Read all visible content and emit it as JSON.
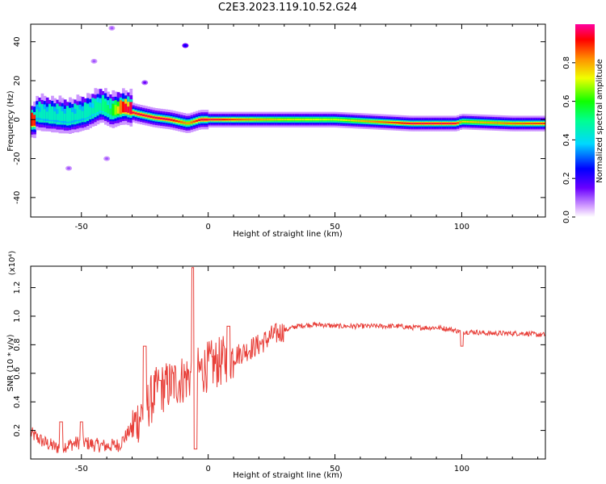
{
  "chart_data": [
    {
      "type": "heatmap",
      "title": "C2E3.2023.119.10.52.G24",
      "xlabel": "Height of straight line (km)",
      "ylabel": "Frequency (Hz)",
      "xlim": [
        -70,
        133
      ],
      "ylim": [
        -50,
        49
      ],
      "xticks": [
        -50,
        0,
        50,
        100
      ],
      "yticks": [
        -40,
        -20,
        0,
        20,
        40
      ],
      "colorbar": {
        "label": "Normalized spectral amplitude",
        "range": [
          0,
          1
        ],
        "ticks": [
          0.0,
          0.2,
          0.4,
          0.6,
          0.8
        ],
        "tick_labels": [
          "0.0",
          "0.2",
          "0.4",
          "0.6",
          "0.8"
        ]
      },
      "ridge": [
        {
          "x": -68,
          "f": 2,
          "amp": 0.45
        },
        {
          "x": -62,
          "f": 1,
          "amp": 0.45
        },
        {
          "x": -55,
          "f": 0,
          "amp": 0.45
        },
        {
          "x": -48,
          "f": 2,
          "amp": 0.45
        },
        {
          "x": -42,
          "f": 6,
          "amp": 0.5
        },
        {
          "x": -38,
          "f": 3,
          "amp": 0.55
        },
        {
          "x": -33,
          "f": 5,
          "amp": 0.95
        },
        {
          "x": -28,
          "f": 3,
          "amp": 0.95
        },
        {
          "x": -21,
          "f": 1,
          "amp": 0.95
        },
        {
          "x": -15,
          "f": 0,
          "amp": 0.95
        },
        {
          "x": -8,
          "f": -2,
          "amp": 0.8
        },
        {
          "x": -3,
          "f": 0,
          "amp": 0.95
        },
        {
          "x": 3,
          "f": 0,
          "amp": 0.95
        },
        {
          "x": 15,
          "f": 0,
          "amp": 0.85
        },
        {
          "x": 30,
          "f": 0,
          "amp": 0.75
        },
        {
          "x": 50,
          "f": 0,
          "amp": 0.7
        },
        {
          "x": 80,
          "f": -2,
          "amp": 0.95
        },
        {
          "x": 98,
          "f": -2,
          "amp": 0.95
        },
        {
          "x": 100,
          "f": -1,
          "amp": 0.75
        },
        {
          "x": 120,
          "f": -2,
          "amp": 0.85
        },
        {
          "x": 133,
          "f": -2,
          "amp": 0.9
        }
      ],
      "scattered_blobs": [
        {
          "x": -9,
          "f": 38,
          "amp": 0.25
        },
        {
          "x": -25,
          "f": 19,
          "amp": 0.15
        },
        {
          "x": -45,
          "f": 30,
          "amp": 0.1
        },
        {
          "x": -55,
          "f": -25,
          "amp": 0.1
        },
        {
          "x": -40,
          "f": -20,
          "amp": 0.1
        },
        {
          "x": -38,
          "f": 47,
          "amp": 0.1
        }
      ]
    },
    {
      "type": "line",
      "xlabel": "Height of straight line (km)",
      "ylabel": "SNR (10 * v/v)",
      "y_multiplier_label": "(x10⁴)",
      "xlim": [
        -70,
        133
      ],
      "ylim": [
        0.0,
        1.35
      ],
      "xticks": [
        -50,
        0,
        50,
        100
      ],
      "yticks": [
        0.2,
        0.4,
        0.6,
        0.8,
        1.0,
        1.2
      ],
      "ytick_labels": [
        "0.2",
        "0.4",
        "0.6",
        "0.8",
        "1.0",
        "1.2"
      ],
      "color": "#e8403a",
      "spikes": [
        {
          "x": -58,
          "y": 0.26
        },
        {
          "x": -50,
          "y": 0.26
        },
        {
          "x": -25,
          "y": 0.79
        },
        {
          "x": -19,
          "y": 0.55
        },
        {
          "x": -6,
          "y": 1.34
        },
        {
          "x": -5,
          "y": 0.07
        },
        {
          "x": 8,
          "y": 0.93
        },
        {
          "x": 100,
          "y": 0.79
        }
      ],
      "x": [
        -70,
        -65,
        -60,
        -55,
        -50,
        -45,
        -40,
        -35,
        -30,
        -25,
        -20,
        -15,
        -10,
        -5,
        0,
        5,
        10,
        15,
        20,
        25,
        30,
        35,
        40,
        45,
        50,
        55,
        60,
        65,
        70,
        75,
        80,
        85,
        90,
        95,
        100,
        105,
        110,
        115,
        120,
        125,
        130,
        133
      ],
      "y": [
        0.18,
        0.12,
        0.08,
        0.1,
        0.12,
        0.1,
        0.09,
        0.1,
        0.22,
        0.35,
        0.48,
        0.52,
        0.56,
        0.6,
        0.65,
        0.68,
        0.72,
        0.76,
        0.8,
        0.86,
        0.9,
        0.93,
        0.94,
        0.94,
        0.93,
        0.93,
        0.93,
        0.93,
        0.93,
        0.93,
        0.92,
        0.92,
        0.92,
        0.91,
        0.89,
        0.89,
        0.88,
        0.88,
        0.88,
        0.88,
        0.87,
        0.87
      ]
    }
  ]
}
